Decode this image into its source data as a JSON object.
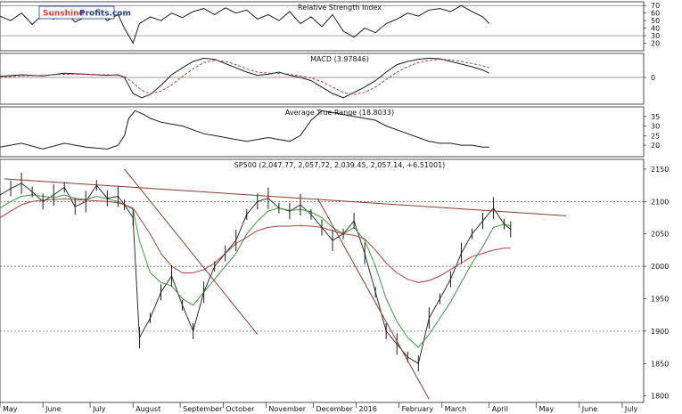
{
  "brand": {
    "part1": "Sunshine",
    "part2": "Profits.com"
  },
  "colors": {
    "ink": "#1a1a1a",
    "red_line": "#b0413e",
    "green_line": "#3a9a3a",
    "brown_line": "#8a3a2a",
    "dotted": "#555555"
  },
  "chart_data": [
    {
      "type": "line",
      "title": "Relative Strength Index",
      "ylim": [
        10,
        75
      ],
      "y_ticks": [
        "70",
        "60",
        "50",
        "40",
        "30",
        "20"
      ],
      "reference_lines": [
        70,
        30
      ],
      "x": [
        0,
        5,
        10,
        15,
        20,
        25,
        30,
        35,
        40,
        45,
        50,
        55,
        58,
        62,
        65,
        70,
        75,
        80,
        85,
        90,
        95,
        100,
        105,
        110,
        115,
        120,
        125,
        130,
        135,
        140,
        145,
        150,
        155,
        160,
        165,
        170,
        175,
        180,
        185,
        190,
        195,
        200,
        205,
        210,
        215,
        220,
        225,
        228
      ],
      "series": [
        {
          "values": [
            56,
            50,
            60,
            45,
            58,
            52,
            62,
            48,
            55,
            64,
            50,
            58,
            40,
            20,
            46,
            55,
            50,
            60,
            54,
            62,
            66,
            58,
            67,
            60,
            64,
            52,
            58,
            50,
            62,
            46,
            55,
            42,
            58,
            36,
            28,
            40,
            34,
            46,
            52,
            60,
            56,
            64,
            66,
            62,
            70,
            62,
            55,
            46
          ]
        }
      ]
    },
    {
      "type": "line",
      "title": "MACD (3.97846)",
      "ylim": [
        -50,
        45
      ],
      "y_ticks": [
        "0"
      ],
      "reference_lines": [
        0
      ],
      "x": [
        0,
        10,
        20,
        30,
        40,
        50,
        55,
        58,
        62,
        66,
        70,
        75,
        80,
        85,
        90,
        95,
        100,
        105,
        110,
        115,
        120,
        125,
        130,
        135,
        140,
        145,
        150,
        155,
        160,
        165,
        170,
        175,
        180,
        185,
        190,
        195,
        200,
        205,
        210,
        215,
        220,
        225,
        228
      ],
      "series": [
        {
          "name": "macd",
          "values": [
            2,
            5,
            3,
            8,
            6,
            4,
            5,
            0,
            -30,
            -38,
            -32,
            -15,
            5,
            18,
            30,
            36,
            34,
            26,
            18,
            10,
            4,
            6,
            10,
            4,
            0,
            -6,
            -18,
            -30,
            -38,
            -28,
            -18,
            -6,
            10,
            24,
            30,
            34,
            36,
            35,
            30,
            25,
            20,
            14,
            8
          ]
        },
        {
          "name": "signal",
          "values": [
            0,
            3,
            4,
            6,
            6,
            5,
            4,
            2,
            -10,
            -24,
            -30,
            -26,
            -14,
            2,
            16,
            28,
            32,
            30,
            24,
            16,
            10,
            8,
            8,
            6,
            3,
            -1,
            -8,
            -18,
            -28,
            -32,
            -28,
            -18,
            -4,
            10,
            20,
            28,
            32,
            34,
            33,
            30,
            26,
            22,
            18
          ]
        }
      ]
    },
    {
      "type": "line",
      "title": "Average True Range (18.8033)",
      "ylim": [
        14,
        40
      ],
      "y_ticks": [
        "35",
        "30",
        "25",
        "20"
      ],
      "x": [
        0,
        10,
        20,
        30,
        40,
        50,
        55,
        58,
        60,
        63,
        67,
        70,
        75,
        80,
        85,
        90,
        95,
        100,
        105,
        110,
        115,
        120,
        125,
        130,
        135,
        140,
        145,
        150,
        155,
        160,
        165,
        170,
        175,
        180,
        185,
        190,
        195,
        200,
        205,
        210,
        215,
        220,
        225,
        228
      ],
      "series": [
        {
          "values": [
            19,
            21,
            18,
            21,
            19,
            18,
            20,
            25,
            34,
            38,
            36,
            34,
            32,
            31,
            30,
            28,
            26,
            25,
            24,
            23,
            22,
            23,
            24,
            23,
            22,
            25,
            33,
            38,
            37,
            36,
            35,
            34,
            33,
            30,
            28,
            26,
            24,
            22,
            21,
            21,
            20,
            20,
            19,
            19
          ]
        }
      ]
    },
    {
      "type": "line",
      "title": "SP500 (2,047.77, 2,057.72, 2,039.45, 2,057.14, +6.51001)",
      "ylim": [
        1790,
        2165
      ],
      "y_ticks": [
        "2150",
        "2100",
        "2050",
        "2000",
        "1950",
        "1900",
        "1850",
        "1800"
      ],
      "reference_lines": [
        2100,
        2000,
        1900
      ],
      "x_months": [
        "May",
        "June",
        "July",
        "August",
        "September",
        "October",
        "November",
        "December",
        "2016",
        "February",
        "March",
        "April",
        "May",
        "June",
        "July"
      ],
      "x_month_days": [
        0,
        20,
        42,
        62,
        84,
        104,
        124,
        146,
        166,
        186,
        206,
        228,
        250,
        270,
        290
      ],
      "x": [
        0,
        5,
        10,
        15,
        20,
        25,
        30,
        35,
        40,
        45,
        50,
        55,
        58,
        62,
        65,
        70,
        75,
        80,
        85,
        90,
        95,
        100,
        105,
        110,
        115,
        120,
        125,
        130,
        135,
        140,
        145,
        150,
        155,
        160,
        165,
        170,
        175,
        180,
        185,
        190,
        195,
        200,
        205,
        210,
        215,
        220,
        225,
        230,
        235,
        238
      ],
      "series": [
        {
          "name": "price",
          "values": [
            2110,
            2120,
            2128,
            2115,
            2100,
            2110,
            2122,
            2092,
            2100,
            2125,
            2105,
            2108,
            2095,
            2075,
            1890,
            1920,
            1960,
            1985,
            1940,
            1900,
            1960,
            2000,
            2020,
            2040,
            2080,
            2100,
            2105,
            2090,
            2085,
            2095,
            2080,
            2060,
            2040,
            2050,
            2070,
            2020,
            1960,
            1900,
            1880,
            1860,
            1850,
            1920,
            1950,
            1980,
            2020,
            2050,
            2070,
            2090,
            2065,
            2057
          ]
        },
        {
          "name": "ma-short",
          "values": [
            2090,
            2100,
            2108,
            2110,
            2108,
            2106,
            2110,
            2105,
            2103,
            2108,
            2104,
            2100,
            2095,
            2088,
            2040,
            1990,
            1975,
            1970,
            1950,
            1940,
            1960,
            1980,
            2000,
            2020,
            2050,
            2070,
            2085,
            2090,
            2086,
            2088,
            2084,
            2075,
            2060,
            2050,
            2060,
            2040,
            2000,
            1950,
            1915,
            1890,
            1875,
            1895,
            1920,
            1945,
            1975,
            2005,
            2030,
            2060,
            2065,
            2062
          ]
        },
        {
          "name": "ma-long",
          "values": [
            2075,
            2085,
            2095,
            2100,
            2102,
            2103,
            2104,
            2103,
            2102,
            2101,
            2100,
            2098,
            2095,
            2090,
            2075,
            2050,
            2020,
            2000,
            1990,
            1990,
            1995,
            2005,
            2020,
            2035,
            2045,
            2055,
            2060,
            2062,
            2062,
            2063,
            2062,
            2060,
            2055,
            2050,
            2048,
            2042,
            2025,
            2005,
            1990,
            1980,
            1975,
            1978,
            1985,
            1995,
            2005,
            2015,
            2020,
            2025,
            2028,
            2028
          ]
        }
      ],
      "trendlines": [
        {
          "from": [
            2,
            2135
          ],
          "to": [
            264,
            2078
          ]
        },
        {
          "from": [
            58,
            2150
          ],
          "to": [
            120,
            1895
          ]
        },
        {
          "from": [
            148,
            2105
          ],
          "to": [
            200,
            1795
          ]
        }
      ]
    }
  ],
  "x_domain": [
    0,
    300
  ]
}
